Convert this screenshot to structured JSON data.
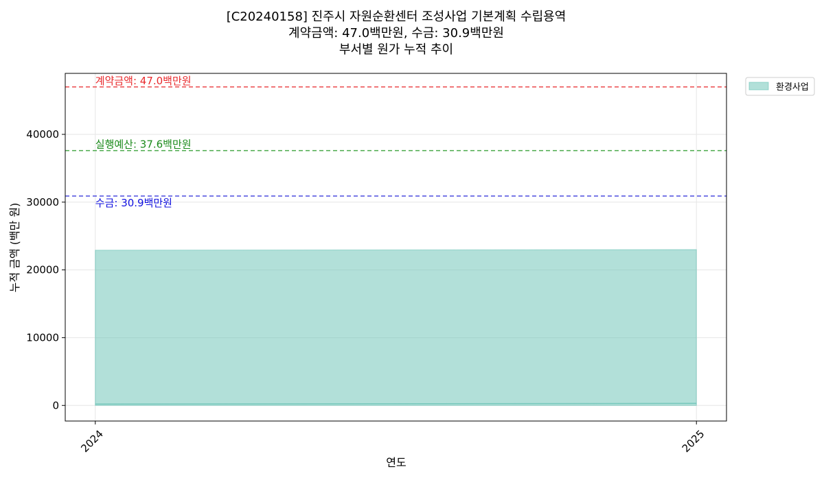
{
  "chart_data": {
    "type": "area",
    "title_lines": [
      "[C20240158] 진주시 자원순환센터 조성사업 기본계획 수립용역",
      "계약금액: 47.0백만원, 수금: 30.9백만원",
      "부서별 원가 누적 추이"
    ],
    "xlabel": "연도",
    "ylabel": "누적 금액 (백만 원)",
    "x": [
      "2024",
      "2025"
    ],
    "xlim": [
      2023.95,
      2025.05
    ],
    "ylim": [
      -2300,
      49000
    ],
    "yticks": [
      0,
      10000,
      20000,
      30000,
      40000
    ],
    "ytick_labels": [
      "0",
      "10000",
      "20000",
      "30000",
      "40000"
    ],
    "grid": true,
    "legend": "outside-top-right",
    "series": [
      {
        "name": "환경사업",
        "values": [
          22900,
          23000
        ],
        "color": "#66c2b4",
        "baseline_line_values": [
          200,
          300
        ]
      }
    ],
    "reference_lines": [
      {
        "value": 47000,
        "label": "계약금액: 47.0백만원",
        "color": "#e8282b",
        "label_position": "above"
      },
      {
        "value": 37600,
        "label": "실행예산: 37.6백만원",
        "color": "#2a9a2a",
        "label_position": "above",
        "text_color": "#1a8a1a"
      },
      {
        "value": 30900,
        "label": "수금: 30.9백만원",
        "color": "#2b2bd9",
        "label_position": "below",
        "text_color": "#1010e0"
      }
    ]
  }
}
